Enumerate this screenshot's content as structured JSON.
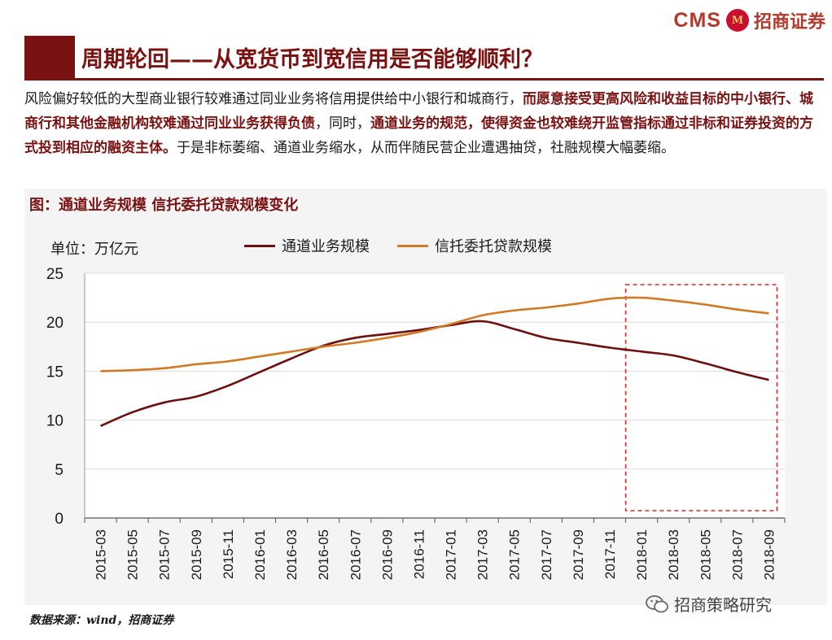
{
  "header": {
    "logo_en": "CMS",
    "logo_mark": "M",
    "logo_cn": "招商证券",
    "title": "周期轮回——从宽货币到宽信用是否能够顺利？"
  },
  "paragraph": {
    "part1": "风险偏好较低的大型商业银行较难通过同业业务将信用提供给中小银行和城商行，",
    "part2": "而愿意接受更高风险和收益目标的中小银行、城商行和其他金融机构较难通过同业业务获得负债",
    "part3": "，同时，",
    "part4": "通道业务的规范，使得资金也较难绕开监管指标通过非标和证券投资的方式投到相应的融资主体。",
    "part5": "于是非标萎缩、通道业务缩水，从而伴随民营企业遭遇抽贷，社融规模大幅萎缩。"
  },
  "figure": {
    "title": "图：通道业务规模 信托委托贷款规模变化",
    "unit": "单位：万亿元",
    "source": "数据来源：wind，招商证券"
  },
  "watermark": {
    "text": "招商策略研究",
    "icon": "wechat-icon"
  },
  "colors": {
    "brand": "#7a1212",
    "series1": "#6b0f0f",
    "series2": "#d07a25",
    "highlight": "#d62828"
  },
  "chart_data": {
    "type": "line",
    "ylim": [
      0,
      25
    ],
    "yticks": [
      0,
      5,
      10,
      15,
      20,
      25
    ],
    "x": [
      "2015-03",
      "2015-05",
      "2015-07",
      "2015-09",
      "2015-11",
      "2016-01",
      "2016-03",
      "2016-05",
      "2016-07",
      "2016-09",
      "2016-11",
      "2017-01",
      "2017-03",
      "2017-05",
      "2017-07",
      "2017-09",
      "2017-11",
      "2018-01",
      "2018-03",
      "2018-05",
      "2018-07",
      "2018-09"
    ],
    "series": [
      {
        "name": "通道业务规模",
        "color": "#6b0f0f",
        "values": [
          9.4,
          10.8,
          11.8,
          12.4,
          13.5,
          14.9,
          16.3,
          17.6,
          18.4,
          18.8,
          19.2,
          19.7,
          20.1,
          19.3,
          18.4,
          17.9,
          17.4,
          17.0,
          16.6,
          15.8,
          14.9,
          14.1
        ]
      },
      {
        "name": "信托委托贷款规模",
        "color": "#d07a25",
        "values": [
          15.0,
          15.1,
          15.3,
          15.7,
          16.0,
          16.5,
          17.0,
          17.5,
          17.9,
          18.4,
          19.0,
          19.8,
          20.7,
          21.2,
          21.5,
          21.9,
          22.4,
          22.5,
          22.2,
          21.8,
          21.3,
          20.9
        ]
      }
    ],
    "highlight_range": [
      "2017-12",
      "2018-09"
    ],
    "grid": "horizontal",
    "legend": "top-center"
  }
}
